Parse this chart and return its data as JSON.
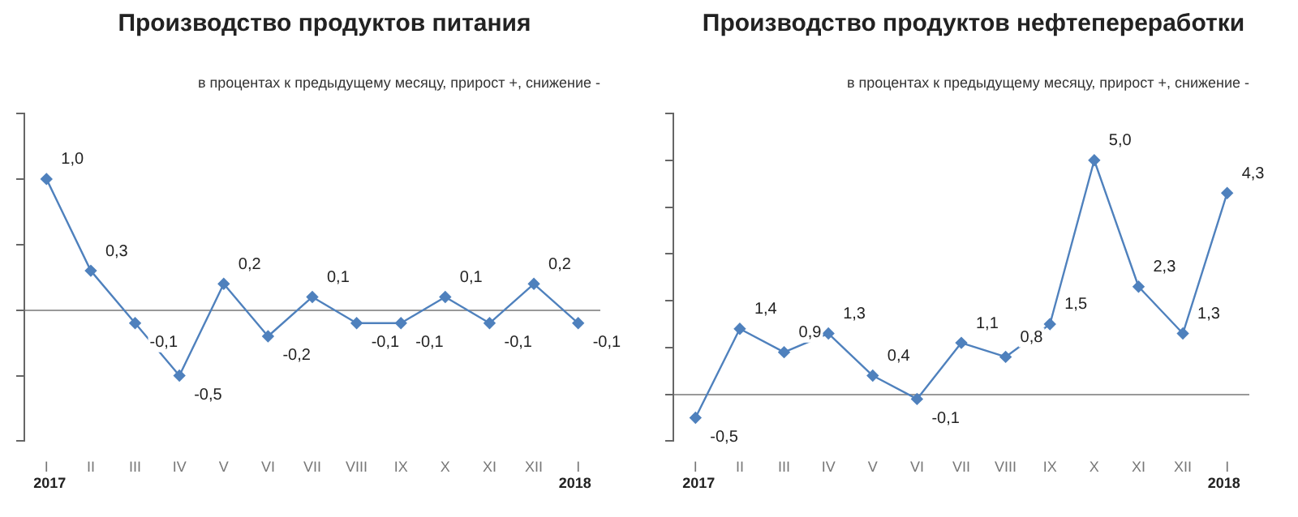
{
  "chart_data": [
    {
      "type": "line",
      "title": "Производство продуктов питания",
      "subtitle": "в процентах к предыдущему месяцу, прирост +, снижение -",
      "categories": [
        "I",
        "II",
        "III",
        "IV",
        "V",
        "VI",
        "VII",
        "VIII",
        "IX",
        "X",
        "XI",
        "XII",
        "I"
      ],
      "series": [
        {
          "color": "#4f81bd",
          "values": [
            1.0,
            0.3,
            -0.1,
            -0.5,
            0.2,
            -0.2,
            0.1,
            -0.1,
            -0.1,
            0.1,
            -0.1,
            0.2,
            -0.1
          ],
          "value_labels": [
            "1,0",
            "0,3",
            "-0,1",
            "-0,5",
            "0,2",
            "-0,2",
            "0,1",
            "-0,1",
            "-0,1",
            "0,1",
            "-0,1",
            "0,2",
            "-0,1"
          ]
        }
      ],
      "ylim": [
        -1,
        1.5
      ],
      "yticks": [
        {
          "value": -1,
          "label": null
        },
        {
          "value": -0.5,
          "label": null
        },
        {
          "value": 0,
          "label": null
        },
        {
          "value": 0.5,
          "label": null
        },
        {
          "value": 1,
          "label": null
        },
        {
          "value": 1.5,
          "label": null
        }
      ],
      "tick_labels": "x",
      "marker": "diamond",
      "annotations": [
        "2017",
        "2018"
      ]
    },
    {
      "type": "line",
      "title": "Производство продуктов нефтепереработки",
      "subtitle": "в процентах к предыдущему месяцу, прирост +, снижение -",
      "categories": [
        "I",
        "II",
        "III",
        "IV",
        "V",
        "VI",
        "VII",
        "VIII",
        "IX",
        "X",
        "XI",
        "XII",
        "I"
      ],
      "series": [
        {
          "color": "#4f81bd",
          "values": [
            -0.5,
            1.4,
            0.9,
            1.3,
            0.4,
            -0.1,
            1.1,
            0.8,
            1.5,
            5.0,
            2.3,
            1.3,
            4.3
          ],
          "value_labels": [
            "-0,5",
            "1,4",
            "0,9",
            "1,3",
            "0,4",
            "-0,1",
            "1,1",
            "0,8",
            "1,5",
            "5,0",
            "2,3",
            "1,3",
            "4,3"
          ]
        }
      ],
      "ylim": [
        -1,
        6
      ],
      "yticks": [
        {
          "value": -1,
          "label": null
        },
        {
          "value": 0,
          "label": null
        },
        {
          "value": 1,
          "label": null
        },
        {
          "value": 2,
          "label": null
        },
        {
          "value": 3,
          "label": null
        },
        {
          "value": 4,
          "label": null
        },
        {
          "value": 5,
          "label": null
        },
        {
          "value": 6,
          "label": null
        }
      ],
      "tick_labels": "x",
      "marker": "diamond",
      "annotations": [
        "2017",
        "2018"
      ]
    }
  ]
}
